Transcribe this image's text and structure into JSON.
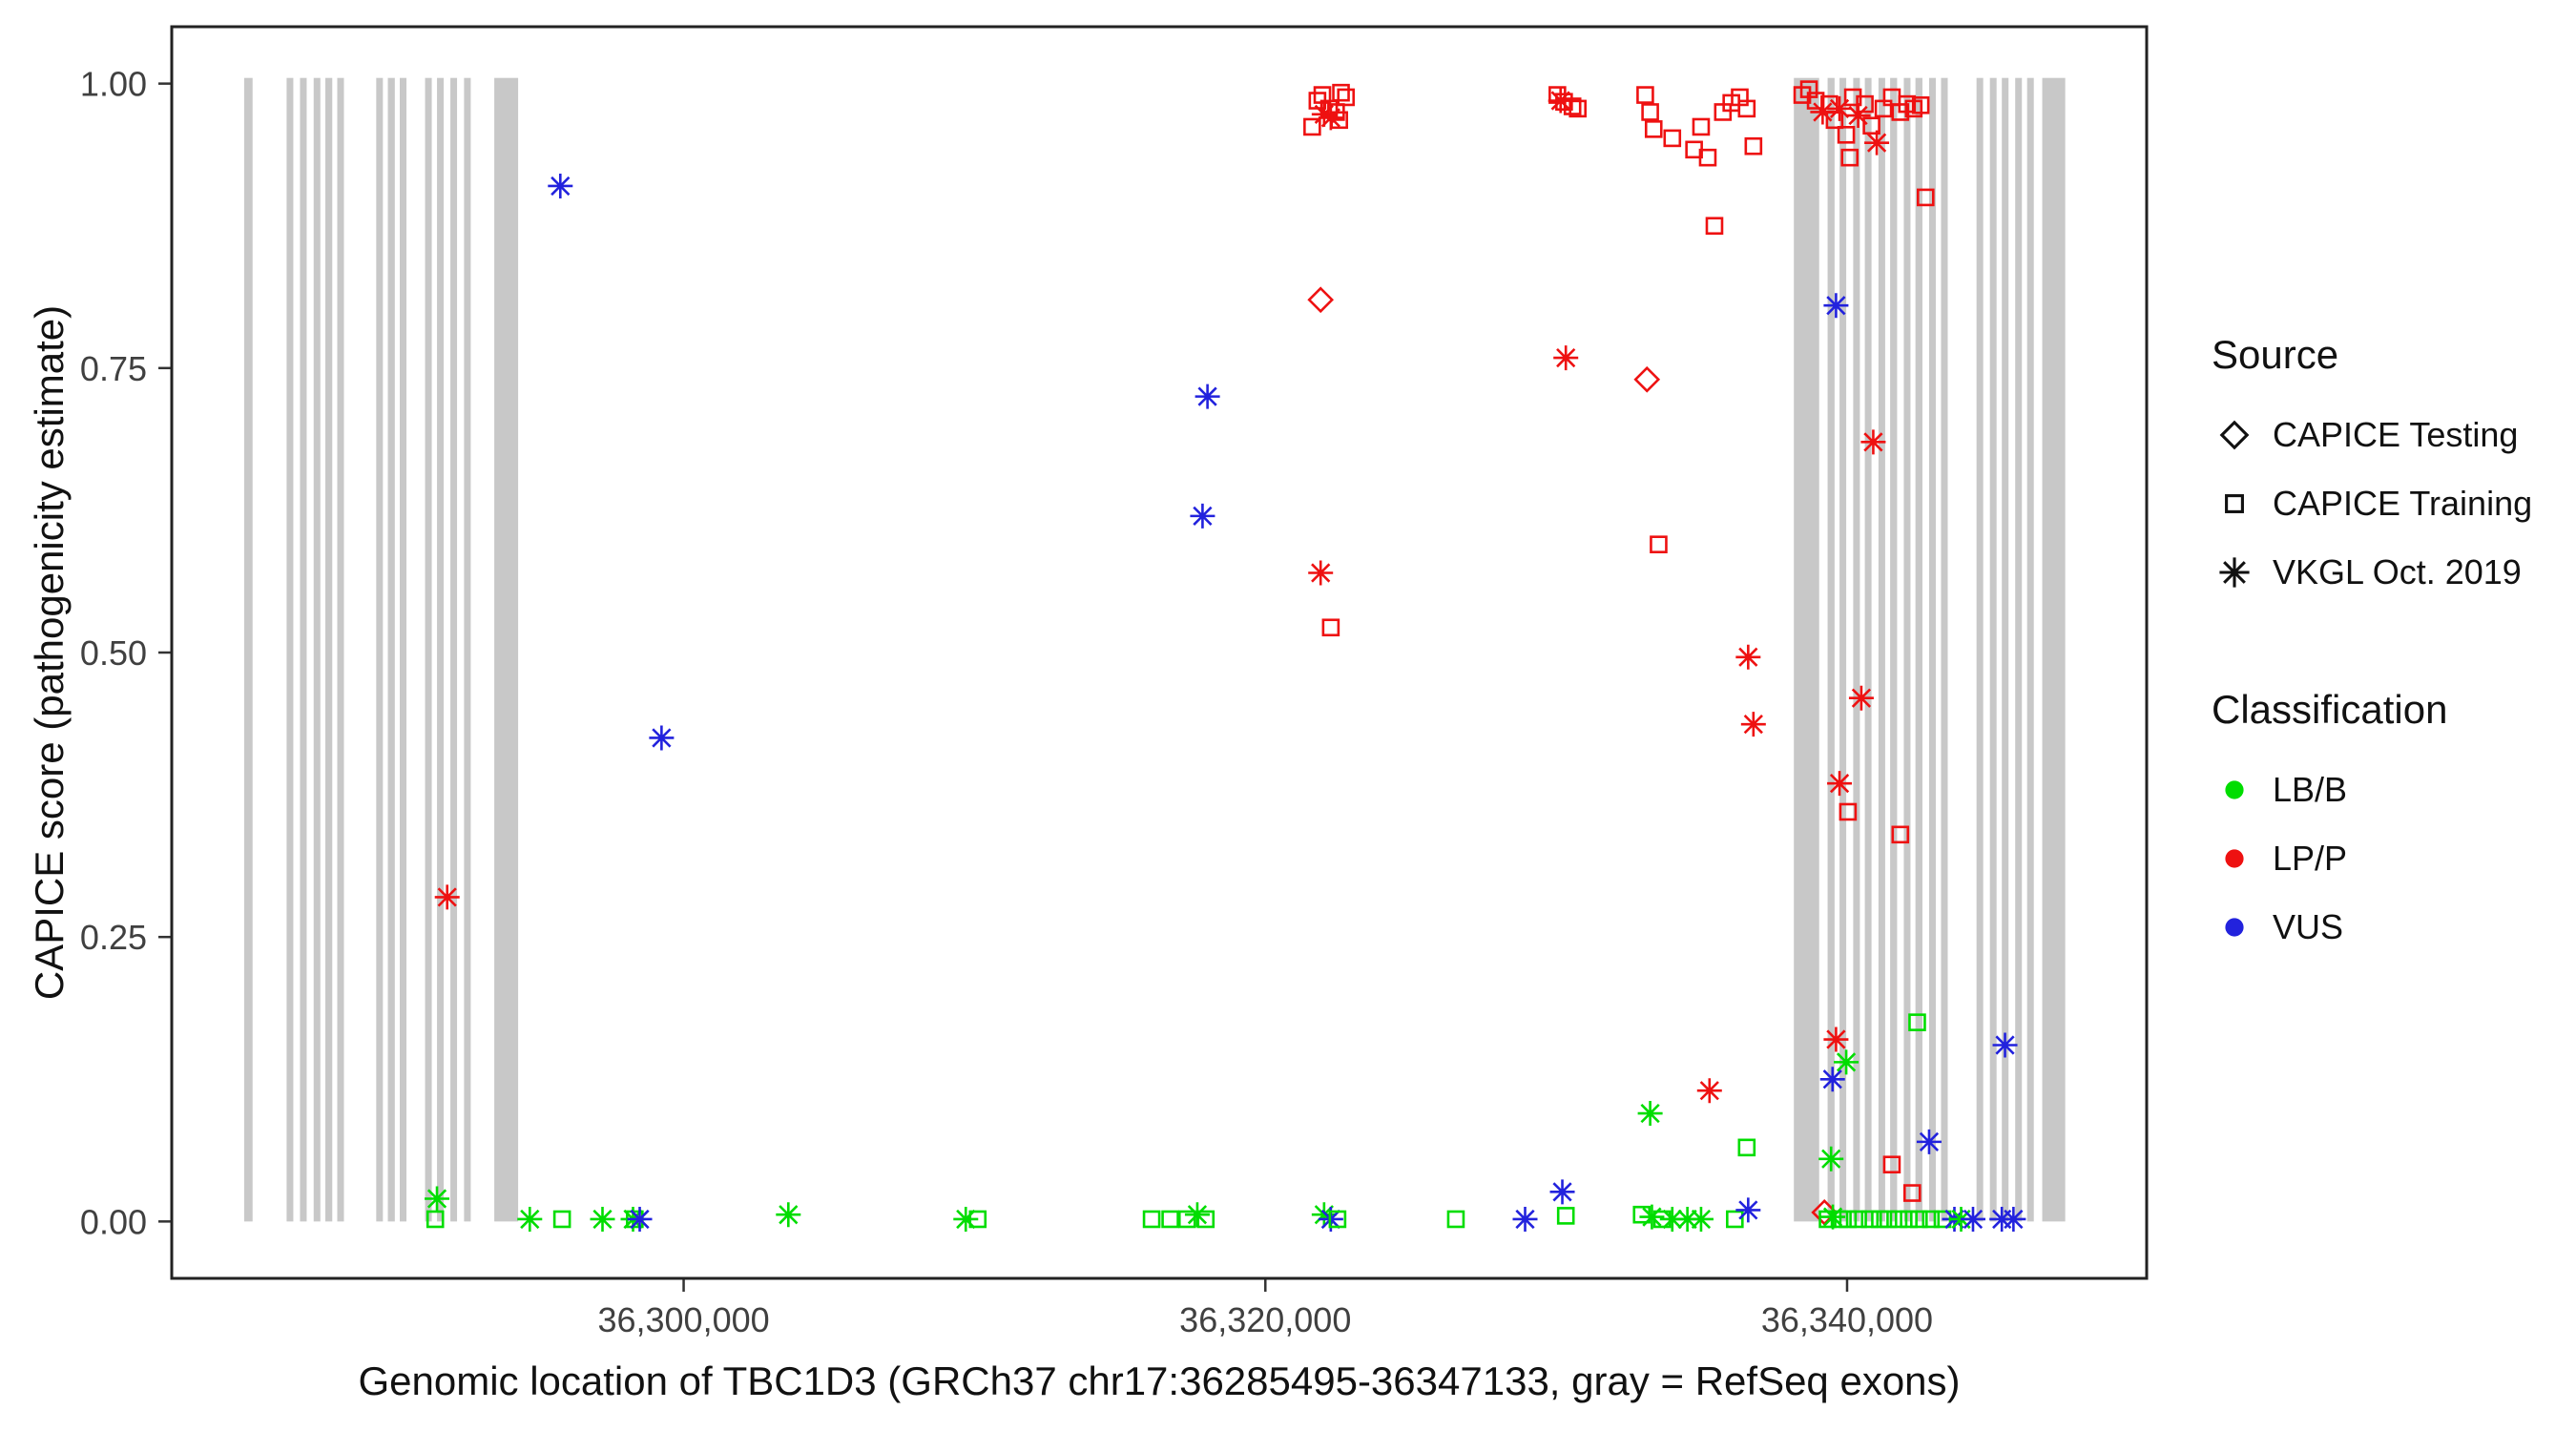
{
  "legend": {
    "source": {
      "title": "Source",
      "items": [
        {
          "label": "CAPICE Testing",
          "marker": "diamond"
        },
        {
          "label": "CAPICE Training",
          "marker": "square"
        },
        {
          "label": "VKGL Oct. 2019",
          "marker": "asterisk"
        }
      ]
    },
    "classification": {
      "title": "Classification",
      "items": [
        {
          "label": "LB/B",
          "color_code": "B"
        },
        {
          "label": "LP/P",
          "color_code": "P"
        },
        {
          "label": "VUS",
          "color_code": "U"
        }
      ]
    }
  },
  "chart_data": {
    "type": "scatter",
    "xlabel": "Genomic location of TBC1D3 (GRCh37 chr17:36285495-36347133, gray = RefSeq exons)",
    "ylabel": "CAPICE score (pathogenicity estimate)",
    "xlim": [
      36282400,
      36350300
    ],
    "ylim": [
      -0.05,
      1.05
    ],
    "x_ticks": [
      {
        "value": 36300000,
        "label": "36,300,000"
      },
      {
        "value": 36320000,
        "label": "36,320,000"
      },
      {
        "value": 36340000,
        "label": "36,340,000"
      }
    ],
    "y_ticks": [
      {
        "value": 0,
        "label": "0.00"
      },
      {
        "value": 0.25,
        "label": "0.25"
      },
      {
        "value": 0.5,
        "label": "0.50"
      },
      {
        "value": 0.75,
        "label": "0.75"
      },
      {
        "value": 1,
        "label": "1.00"
      }
    ],
    "exon_color": "#c8c8c8",
    "exons": [
      [
        36284890,
        36285180
      ],
      [
        36286350,
        36286580
      ],
      [
        36286810,
        36287040
      ],
      [
        36287280,
        36287510
      ],
      [
        36287680,
        36287920
      ],
      [
        36288090,
        36288320
      ],
      [
        36289430,
        36289660
      ],
      [
        36289830,
        36290070
      ],
      [
        36290240,
        36290470
      ],
      [
        36291110,
        36291340
      ],
      [
        36291520,
        36291750
      ],
      [
        36291980,
        36292210
      ],
      [
        36292450,
        36292680
      ],
      [
        36293490,
        36294310
      ],
      [
        36338170,
        36339040
      ],
      [
        36339330,
        36339570
      ],
      [
        36339740,
        36339970
      ],
      [
        36340210,
        36340440
      ],
      [
        36340610,
        36340840
      ],
      [
        36341080,
        36341310
      ],
      [
        36341480,
        36341720
      ],
      [
        36341950,
        36342180
      ],
      [
        36342350,
        36342590
      ],
      [
        36342820,
        36343050
      ],
      [
        36343230,
        36343460
      ],
      [
        36344450,
        36344680
      ],
      [
        36344910,
        36345140
      ],
      [
        36345320,
        36345550
      ],
      [
        36345780,
        36346010
      ],
      [
        36346190,
        36346420
      ],
      [
        36346710,
        36347500
      ]
    ],
    "point_columns": [
      "genomic_position",
      "capice_score",
      "source",
      "classification"
    ],
    "source_markers": {
      "T": "diamond",
      "Q": "square",
      "V": "asterisk"
    },
    "source_names": {
      "T": "CAPICE Testing",
      "Q": "CAPICE Training",
      "V": "VKGL Oct. 2019"
    },
    "class_colors": {
      "B": "#00dd00",
      "P": "#ee1111",
      "U": "#2222dd"
    },
    "class_names": {
      "B": "LB/B",
      "P": "LP/P",
      "U": "VUS"
    },
    "points": [
      [
        36321610,
        0.962,
        "Q",
        "P"
      ],
      [
        36321790,
        0.985,
        "Q",
        "P"
      ],
      [
        36321960,
        0.99,
        "Q",
        "P"
      ],
      [
        36322190,
        0.978,
        "Q",
        "P"
      ],
      [
        36322020,
        0.973,
        "V",
        "P"
      ],
      [
        36322250,
        0.97,
        "V",
        "P"
      ],
      [
        36322430,
        0.975,
        "Q",
        "P"
      ],
      [
        36322600,
        0.992,
        "Q",
        "P"
      ],
      [
        36322770,
        0.988,
        "Q",
        "P"
      ],
      [
        36322540,
        0.968,
        "Q",
        "P"
      ],
      [
        36330040,
        0.99,
        "Q",
        "P"
      ],
      [
        36330270,
        0.984,
        "Q",
        "P"
      ],
      [
        36330560,
        0.98,
        "Q",
        "P"
      ],
      [
        36330740,
        0.978,
        "Q",
        "P"
      ],
      [
        36330150,
        0.985,
        "V",
        "P"
      ],
      [
        36333060,
        0.99,
        "Q",
        "P"
      ],
      [
        36333230,
        0.975,
        "Q",
        "P"
      ],
      [
        36333350,
        0.96,
        "Q",
        "P"
      ],
      [
        36333990,
        0.952,
        "Q",
        "P"
      ],
      [
        36334740,
        0.942,
        "Q",
        "P"
      ],
      [
        36334980,
        0.962,
        "Q",
        "P"
      ],
      [
        36335210,
        0.935,
        "Q",
        "P"
      ],
      [
        36335730,
        0.975,
        "Q",
        "P"
      ],
      [
        36336020,
        0.983,
        "Q",
        "P"
      ],
      [
        36336310,
        0.988,
        "Q",
        "P"
      ],
      [
        36336550,
        0.978,
        "Q",
        "P"
      ],
      [
        36336780,
        0.945,
        "Q",
        "P"
      ],
      [
        36335440,
        0.875,
        "Q",
        "P"
      ],
      [
        36338460,
        0.99,
        "Q",
        "P"
      ],
      [
        36338690,
        0.995,
        "Q",
        "P"
      ],
      [
        36338920,
        0.985,
        "Q",
        "P"
      ],
      [
        36339160,
        0.975,
        "V",
        "P"
      ],
      [
        36339390,
        0.982,
        "Q",
        "P"
      ],
      [
        36339570,
        0.968,
        "Q",
        "P"
      ],
      [
        36339740,
        0.978,
        "V",
        "P"
      ],
      [
        36339970,
        0.955,
        "Q",
        "P"
      ],
      [
        36340200,
        0.988,
        "Q",
        "P"
      ],
      [
        36340380,
        0.972,
        "V",
        "P"
      ],
      [
        36340610,
        0.982,
        "Q",
        "P"
      ],
      [
        36340840,
        0.963,
        "Q",
        "P"
      ],
      [
        36341020,
        0.948,
        "V",
        "P"
      ],
      [
        36341250,
        0.978,
        "Q",
        "P"
      ],
      [
        36341540,
        0.988,
        "Q",
        "P"
      ],
      [
        36341830,
        0.975,
        "Q",
        "P"
      ],
      [
        36342060,
        0.982,
        "Q",
        "P"
      ],
      [
        36342290,
        0.978,
        "Q",
        "P"
      ],
      [
        36342530,
        0.981,
        "Q",
        "P"
      ],
      [
        36342700,
        0.9,
        "Q",
        "P"
      ],
      [
        36340090,
        0.935,
        "Q",
        "P"
      ],
      [
        36295760,
        0.91,
        "V",
        "U"
      ],
      [
        36299240,
        0.425,
        "V",
        "U"
      ],
      [
        36291870,
        0.285,
        "V",
        "P"
      ],
      [
        36318010,
        0.725,
        "V",
        "U"
      ],
      [
        36317840,
        0.62,
        "V",
        "U"
      ],
      [
        36321900,
        0.81,
        "T",
        "P"
      ],
      [
        36321900,
        0.57,
        "V",
        "P"
      ],
      [
        36322250,
        0.522,
        "Q",
        "P"
      ],
      [
        36330330,
        0.759,
        "V",
        "P"
      ],
      [
        36333120,
        0.74,
        "T",
        "P"
      ],
      [
        36333520,
        0.595,
        "Q",
        "P"
      ],
      [
        36336600,
        0.496,
        "V",
        "P"
      ],
      [
        36336780,
        0.437,
        "V",
        "P"
      ],
      [
        36339620,
        0.805,
        "V",
        "U"
      ],
      [
        36340900,
        0.685,
        "V",
        "P"
      ],
      [
        36340490,
        0.46,
        "V",
        "P"
      ],
      [
        36339740,
        0.385,
        "V",
        "P"
      ],
      [
        36340030,
        0.36,
        "Q",
        "P"
      ],
      [
        36341830,
        0.34,
        "Q",
        "P"
      ],
      [
        36339620,
        0.16,
        "V",
        "P"
      ],
      [
        36339970,
        0.14,
        "V",
        "B"
      ],
      [
        36339500,
        0.125,
        "V",
        "U"
      ],
      [
        36342410,
        0.175,
        "Q",
        "B"
      ],
      [
        36342820,
        0.07,
        "V",
        "U"
      ],
      [
        36341540,
        0.05,
        "Q",
        "P"
      ],
      [
        36339450,
        0.055,
        "V",
        "B"
      ],
      [
        36342240,
        0.025,
        "Q",
        "P"
      ],
      [
        36345430,
        0.155,
        "V",
        "U"
      ],
      [
        36333230,
        0.095,
        "V",
        "B"
      ],
      [
        36335270,
        0.115,
        "V",
        "P"
      ],
      [
        36336550,
        0.065,
        "Q",
        "B"
      ],
      [
        36330210,
        0.026,
        "V",
        "U"
      ],
      [
        36339220,
        0.008,
        "T",
        "P"
      ],
      [
        36291520,
        0.02,
        "V",
        "B"
      ],
      [
        36291460,
        0.002,
        "Q",
        "B"
      ],
      [
        36294710,
        0.002,
        "V",
        "B"
      ],
      [
        36295820,
        0.002,
        "Q",
        "B"
      ],
      [
        36297210,
        0.002,
        "V",
        "B"
      ],
      [
        36298260,
        0.002,
        "V",
        "B"
      ],
      [
        36298320,
        0.002,
        "Q",
        "B"
      ],
      [
        36298490,
        0.002,
        "V",
        "U"
      ],
      [
        36303600,
        0.006,
        "V",
        "B"
      ],
      [
        36309700,
        0.002,
        "V",
        "B"
      ],
      [
        36310110,
        0.002,
        "Q",
        "B"
      ],
      [
        36316090,
        0.002,
        "Q",
        "B"
      ],
      [
        36316730,
        0.002,
        "Q",
        "B"
      ],
      [
        36317310,
        0.002,
        "Q",
        "B"
      ],
      [
        36317660,
        0.006,
        "V",
        "B"
      ],
      [
        36317950,
        0.002,
        "Q",
        "B"
      ],
      [
        36322020,
        0.006,
        "V",
        "B"
      ],
      [
        36322250,
        0.002,
        "V",
        "U"
      ],
      [
        36322480,
        0.002,
        "Q",
        "B"
      ],
      [
        36326550,
        0.002,
        "Q",
        "B"
      ],
      [
        36328930,
        0.002,
        "V",
        "U"
      ],
      [
        36330330,
        0.005,
        "Q",
        "B"
      ],
      [
        36332940,
        0.006,
        "Q",
        "B"
      ],
      [
        36333290,
        0.004,
        "V",
        "B"
      ],
      [
        36333640,
        0.002,
        "Q",
        "B"
      ],
      [
        36333990,
        0.002,
        "V",
        "B"
      ],
      [
        36334510,
        0.002,
        "V",
        "B"
      ],
      [
        36334980,
        0.002,
        "V",
        "B"
      ],
      [
        36336140,
        0.002,
        "Q",
        "B"
      ],
      [
        36336600,
        0.01,
        "V",
        "U"
      ],
      [
        36339330,
        0.002,
        "Q",
        "B"
      ],
      [
        36339510,
        0.004,
        "V",
        "B"
      ],
      [
        36339740,
        0.002,
        "Q",
        "B"
      ],
      [
        36340030,
        0.002,
        "Q",
        "B"
      ],
      [
        36340380,
        0.002,
        "Q",
        "B"
      ],
      [
        36340780,
        0.002,
        "Q",
        "B"
      ],
      [
        36341130,
        0.002,
        "Q",
        "B"
      ],
      [
        36341420,
        0.002,
        "Q",
        "B"
      ],
      [
        36341770,
        0.002,
        "Q",
        "B"
      ],
      [
        36342120,
        0.002,
        "Q",
        "B"
      ],
      [
        36342470,
        0.002,
        "Q",
        "B"
      ],
      [
        36342880,
        0.002,
        "Q",
        "B"
      ],
      [
        36343280,
        0.002,
        "Q",
        "B"
      ],
      [
        36343690,
        0.002,
        "V",
        "U"
      ],
      [
        36343920,
        0.002,
        "V",
        "B"
      ],
      [
        36344330,
        0.002,
        "V",
        "U"
      ],
      [
        36345320,
        0.002,
        "V",
        "U"
      ],
      [
        36345720,
        0.002,
        "V",
        "U"
      ]
    ]
  }
}
